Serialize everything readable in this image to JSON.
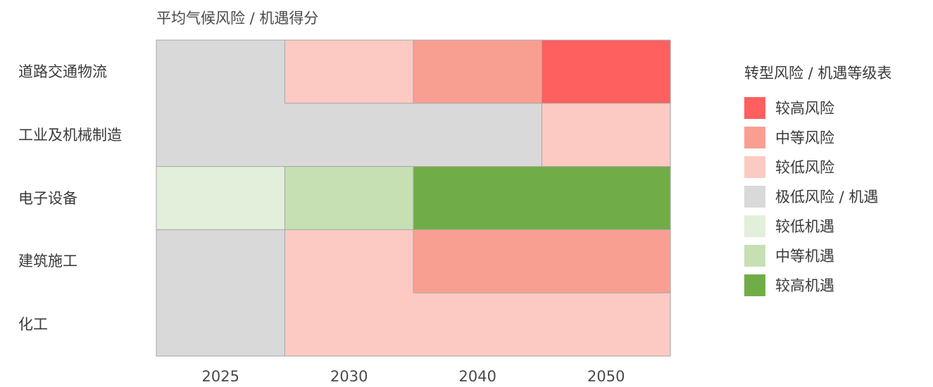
{
  "chart_data": {
    "type": "heatmap",
    "title": "平均气候风险 / 机遇得分",
    "rows": [
      "道路交通物流",
      "工业及机械制造",
      "电子设备",
      "建筑施工",
      "化工"
    ],
    "columns": [
      "2025",
      "2030",
      "2040",
      "2050"
    ],
    "levels": [
      {
        "key": "high_risk",
        "label": "较高风险",
        "color": "#fe5f5f"
      },
      {
        "key": "medium_risk",
        "label": "中等风险",
        "color": "#f99f92"
      },
      {
        "key": "low_risk",
        "label": "较低风险",
        "color": "#fccac3"
      },
      {
        "key": "minimal",
        "label": "极低风险 / 机遇",
        "color": "#d9d9d9"
      },
      {
        "key": "low_opp",
        "label": "较低机遇",
        "color": "#e2efda"
      },
      {
        "key": "medium_opp",
        "label": "中等机遇",
        "color": "#c6e0b4"
      },
      {
        "key": "high_opp",
        "label": "较高机遇",
        "color": "#70ad47"
      }
    ],
    "cells": [
      [
        "minimal",
        "low_risk",
        "medium_risk",
        "high_risk"
      ],
      [
        "minimal",
        "minimal",
        "minimal",
        "low_risk"
      ],
      [
        "low_opp",
        "medium_opp",
        "high_opp",
        "high_opp"
      ],
      [
        "minimal",
        "low_risk",
        "medium_risk",
        "medium_risk"
      ],
      [
        "minimal",
        "low_risk",
        "low_risk",
        "low_risk"
      ]
    ],
    "legend_title": "转型风险 / 机遇等级表",
    "legend_position": "right",
    "grid": true
  }
}
